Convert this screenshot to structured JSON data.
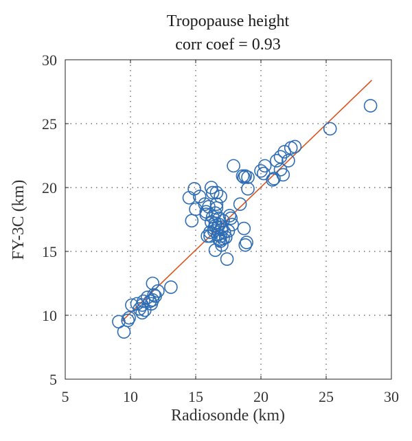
{
  "chart_data": {
    "type": "scatter",
    "title": "Tropopause height",
    "subtitle": "corr coef = 0.93",
    "xlabel": "Radiosonde (km)",
    "ylabel": "FY-3C (km)",
    "xlim": [
      5,
      30
    ],
    "ylim": [
      5,
      30
    ],
    "xticks": [
      5,
      10,
      15,
      20,
      25,
      30
    ],
    "yticks": [
      5,
      10,
      15,
      20,
      25,
      30
    ],
    "grid": true,
    "point_color": "#2f6db5",
    "fit_color": "#d9541e",
    "fit_line": {
      "x": [
        9.3,
        28.5
      ],
      "y": [
        9.5,
        28.4
      ]
    },
    "series": [
      {
        "x": [
          9.1,
          9.5,
          9.8,
          9.9,
          10.1,
          10.5,
          10.7,
          10.9,
          11.0,
          11.1,
          11.3,
          11.5,
          11.6,
          11.7,
          11.8,
          11.9,
          12.1,
          13.1,
          11.7,
          10.9,
          14.5,
          14.7,
          14.9,
          15.0,
          15.3,
          15.7,
          15.8,
          16.1,
          16.2,
          16.3,
          16.3,
          16.4,
          16.5,
          16.5,
          16.6,
          16.6,
          16.7,
          16.7,
          16.8,
          16.8,
          16.9,
          16.9,
          17.0,
          17.0,
          17.1,
          17.1,
          17.2,
          17.3,
          17.4,
          17.5,
          17.6,
          17.8,
          16.1,
          16.4,
          16.7,
          17.0,
          16.6,
          15.9,
          16.2,
          16.9,
          17.3,
          16.5,
          18.4,
          18.6,
          18.7,
          18.8,
          18.9,
          19.0,
          17.9,
          18.7,
          18.8,
          19.0,
          20.0,
          20.3,
          20.9,
          21.0,
          21.2,
          21.5,
          21.7,
          21.8,
          22.1,
          22.3,
          22.6,
          21.5,
          20.2,
          25.3,
          28.4,
          16.5,
          15.8,
          17.7,
          16.0,
          16.8
        ],
        "y": [
          9.5,
          8.7,
          9.6,
          9.8,
          10.8,
          10.9,
          10.5,
          10.2,
          11.1,
          10.4,
          11.4,
          11.1,
          10.9,
          11.2,
          11.6,
          11.5,
          11.9,
          12.2,
          12.5,
          10.8,
          19.2,
          17.4,
          19.9,
          18.3,
          19.3,
          18.7,
          17.9,
          16.2,
          20.0,
          19.6,
          17.7,
          16.6,
          15.1,
          17.2,
          19.6,
          18.7,
          16.3,
          16.9,
          17.1,
          17.6,
          16.2,
          19.3,
          16.7,
          15.5,
          17.4,
          16.0,
          16.5,
          16.1,
          14.4,
          16.6,
          17.8,
          17.1,
          16.5,
          16.8,
          16.3,
          16.9,
          18.4,
          16.2,
          17.3,
          15.8,
          16.1,
          17.0,
          18.7,
          20.9,
          16.8,
          15.5,
          15.7,
          19.9,
          21.7,
          20.8,
          20.9,
          20.8,
          21.3,
          21.7,
          20.6,
          20.7,
          22.1,
          22.4,
          21.0,
          22.8,
          22.1,
          23.1,
          23.2,
          21.4,
          21.1,
          24.6,
          26.4,
          18.0,
          18.1,
          17.6,
          18.5,
          15.9
        ]
      }
    ]
  }
}
